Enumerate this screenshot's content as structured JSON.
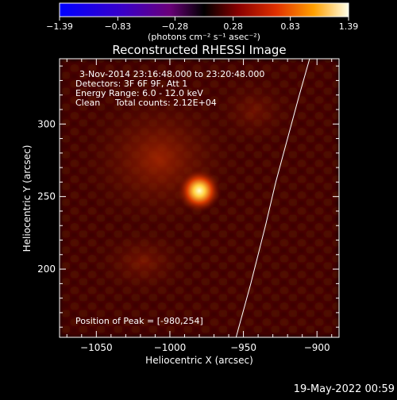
{
  "colorbar": {
    "ticks": [
      "-1.39",
      "-0.83",
      "-0.28",
      "0.28",
      "0.83",
      "1.39"
    ],
    "unit_label": "(photons cm⁻² s⁻¹ asec⁻²)",
    "range": [
      -1.39,
      1.39
    ]
  },
  "chart_data": {
    "type": "heatmap",
    "title": "Reconstructed RHESSI Image",
    "xlabel": "Heliocentric X (arcsec)",
    "ylabel": "Heliocentric Y (arcsec)",
    "xlim": [
      -1075,
      -885
    ],
    "ylim": [
      153,
      345
    ],
    "x_ticks": [
      -1050,
      -1000,
      -950,
      -900
    ],
    "x_tick_labels": [
      "−1050",
      "−1000",
      "−950",
      "−900"
    ],
    "y_ticks": [
      200,
      250,
      300
    ],
    "y_tick_labels": [
      "200",
      "250",
      "300"
    ],
    "peak": {
      "x": -980,
      "y": 254
    },
    "limb": [
      [
        -955,
        153
      ],
      [
        -945,
        190
      ],
      [
        -935,
        230
      ],
      [
        -928,
        260
      ],
      [
        -920,
        290
      ],
      [
        -912,
        320
      ],
      [
        -905,
        345
      ]
    ],
    "annotations": {
      "time": "3-Nov-2014 23:16:48.000 to 23:20:48.000",
      "detectors": "Detectors: 3F 6F 9F, Att 1",
      "energy": "Energy Range: 6.0 - 12.0 keV",
      "clean": "Clean",
      "counts": "Total counts: 2.12E+04",
      "peak_text": "Position of Peak = [-980,254]"
    }
  },
  "footer": {
    "timestamp": "19-May-2022 00:59"
  }
}
